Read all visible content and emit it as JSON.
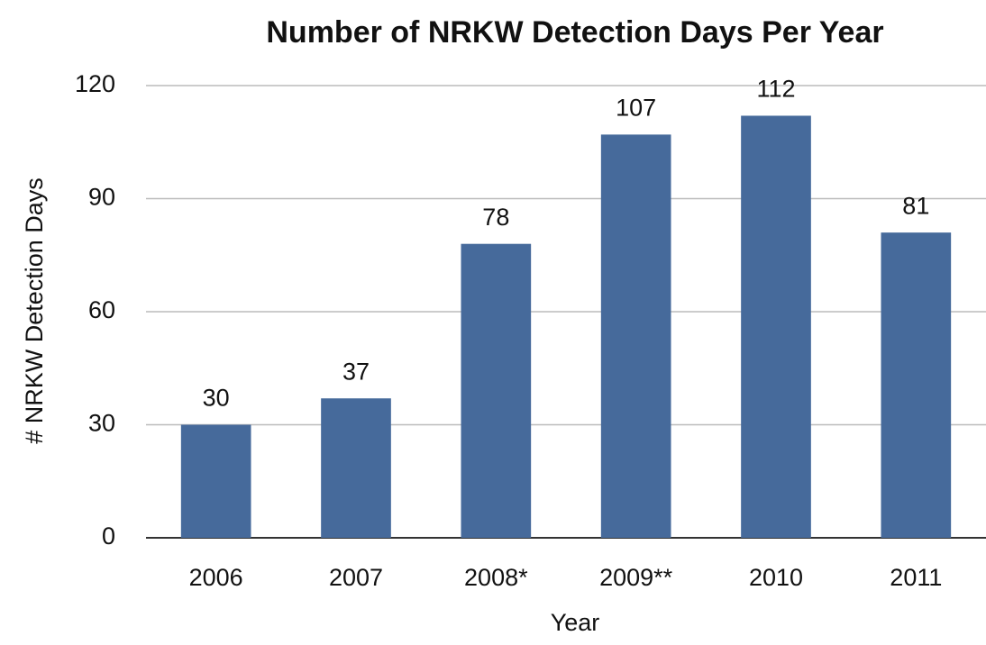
{
  "chart_data": {
    "type": "bar",
    "title": "Number of NRKW Detection Days Per Year",
    "x_label": "Year",
    "y_label": "# NRKW Detection Days",
    "categories": [
      "2006",
      "2007",
      "2008*",
      "2009**",
      "2010",
      "2011"
    ],
    "values": [
      30,
      37,
      78,
      107,
      112,
      81
    ],
    "color": "#466a9b",
    "ylim": [
      0,
      120
    ],
    "yticks": [
      0,
      30,
      60,
      90,
      120
    ],
    "grid": true
  }
}
